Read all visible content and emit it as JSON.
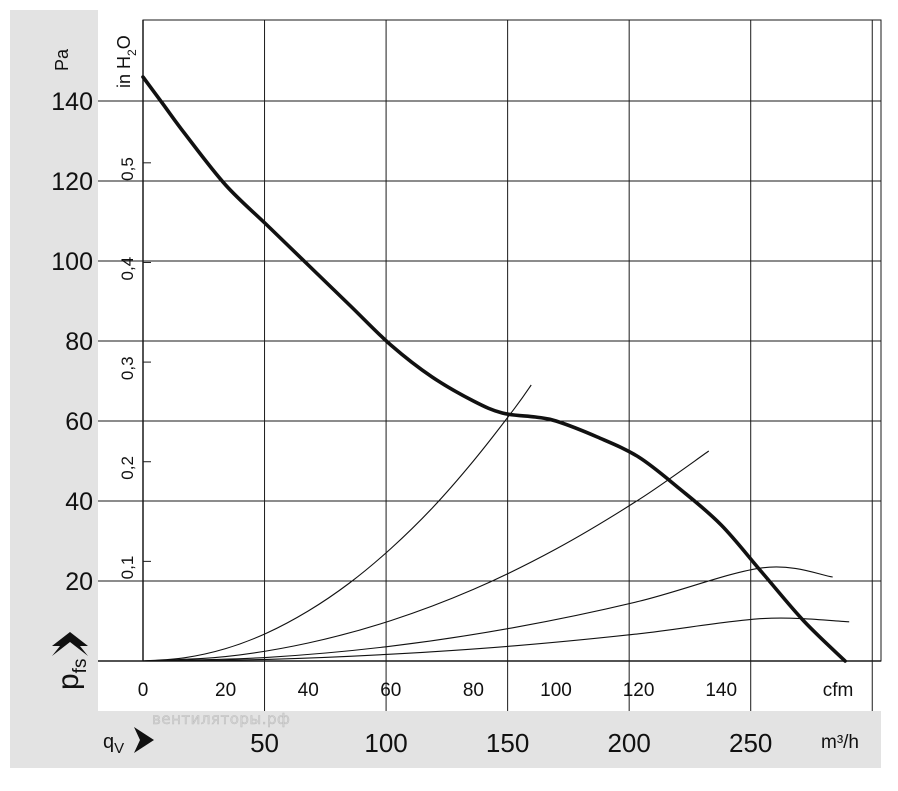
{
  "chart_data": {
    "type": "line",
    "y_primary": {
      "label": "p",
      "label_subscript": "fs",
      "unit": "Pa",
      "ticks": [
        "20",
        "40",
        "60",
        "80",
        "100",
        "120",
        "140"
      ],
      "ylim": [
        0,
        155
      ]
    },
    "y_secondary": {
      "unit": "in H",
      "unit_subscript": "2",
      "unit_suffix": "O",
      "ticks": [
        "0,1",
        "0,2",
        "0,3",
        "0,4",
        "0,5"
      ]
    },
    "x_primary": {
      "unit": "cfm",
      "ticks": [
        "0",
        "20",
        "40",
        "60",
        "80",
        "100",
        "120",
        "140"
      ],
      "xlim": [
        0,
        180
      ]
    },
    "x_secondary": {
      "label": "q",
      "label_subscript": "V",
      "unit": "m³/h",
      "ticks": [
        "50",
        "100",
        "150",
        "200",
        "250"
      ]
    },
    "grid": true,
    "series": [
      {
        "role": "fan-curve",
        "x": [
          0,
          5,
          10,
          20,
          30,
          40,
          50,
          60,
          70,
          80,
          87,
          95,
          100,
          110,
          120,
          130,
          140,
          150,
          160,
          170
        ],
        "y": [
          146,
          139,
          132,
          119,
          109,
          99,
          89,
          79,
          71,
          65,
          62,
          61,
          60,
          56,
          51,
          43,
          34,
          22,
          10,
          0
        ]
      },
      {
        "role": "system-curve",
        "x": [
          0,
          10,
          20,
          30,
          40,
          50,
          60,
          70,
          80,
          90,
          94
        ],
        "y": [
          0,
          0.8,
          3.1,
          7.0,
          12.5,
          19.5,
          28.1,
          38.2,
          50.0,
          63.2,
          69.0
        ]
      },
      {
        "role": "system-curve",
        "x": [
          0,
          20,
          40,
          60,
          80,
          100,
          120,
          137
        ],
        "y": [
          0,
          1.1,
          4.5,
          10.1,
          17.9,
          28.0,
          40.3,
          52.5
        ]
      },
      {
        "role": "system-curve",
        "x": [
          0,
          30,
          60,
          90,
          120,
          150,
          167
        ],
        "y": [
          0,
          0.9,
          3.7,
          8.4,
          14.9,
          23.3,
          21.0
        ]
      },
      {
        "role": "system-curve",
        "x": [
          0,
          30,
          60,
          90,
          120,
          150,
          171
        ],
        "y": [
          0,
          0.4,
          1.7,
          3.8,
          6.8,
          10.6,
          9.8
        ]
      }
    ]
  },
  "watermark": "вентиляторы.рф",
  "colors": {
    "left_panel": "#e3e3e3",
    "bottom_band": "#e3e3e3",
    "grid": "#1a1a1a",
    "curve": "#111111"
  }
}
